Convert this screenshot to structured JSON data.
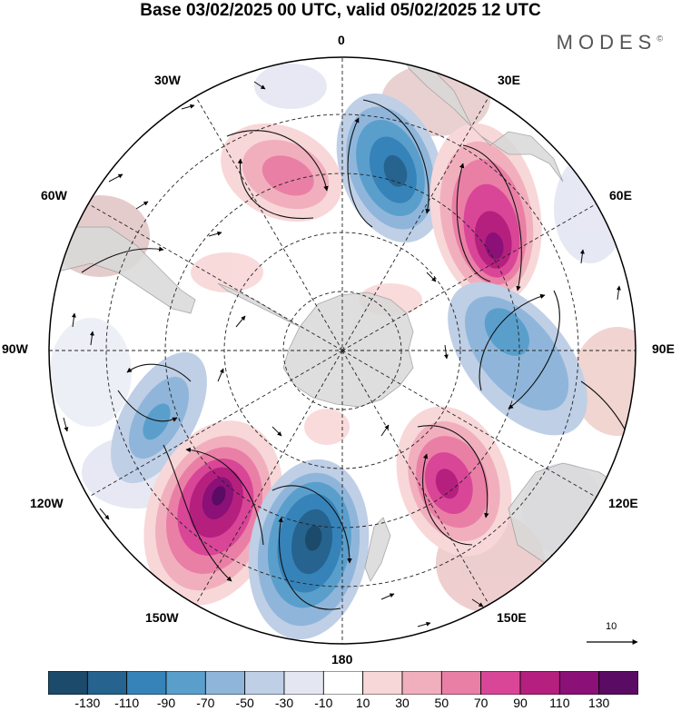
{
  "title": "Base 03/02/2025 00 UTC, valid 05/02/2025 12 UTC",
  "logo": {
    "text": "MODES",
    "mark": "©"
  },
  "map": {
    "projection": "south-polar-stereographic",
    "longitude_labels": [
      {
        "key": "n0",
        "text": "0"
      },
      {
        "key": "e30",
        "text": "30E"
      },
      {
        "key": "e60",
        "text": "60E"
      },
      {
        "key": "e90",
        "text": "90E"
      },
      {
        "key": "e120",
        "text": "120E"
      },
      {
        "key": "e150",
        "text": "150E"
      },
      {
        "key": "s180",
        "text": "180"
      },
      {
        "key": "w150",
        "text": "150W"
      },
      {
        "key": "w120",
        "text": "120W"
      },
      {
        "key": "w90",
        "text": "90W"
      },
      {
        "key": "w60",
        "text": "60W"
      },
      {
        "key": "w30",
        "text": "30W"
      }
    ],
    "vector_scale_label": "10",
    "anomaly_centers": [
      {
        "sign": "negative",
        "lon_label": "15E",
        "value": -110
      },
      {
        "sign": "positive",
        "lon_label": "25W",
        "value": 70
      },
      {
        "sign": "positive",
        "lon_label": "45E",
        "value": 130
      },
      {
        "sign": "negative",
        "lon_label": "80E",
        "value": -70
      },
      {
        "sign": "negative",
        "lon_label": "105W",
        "value": -70
      },
      {
        "sign": "positive",
        "lon_label": "140W",
        "value": 130
      },
      {
        "sign": "negative",
        "lon_label": "170W",
        "value": -130
      },
      {
        "sign": "positive",
        "lon_label": "140E",
        "value": 110
      }
    ]
  },
  "colorbar": {
    "colors": [
      "#1b4a6a",
      "#26638e",
      "#3683b9",
      "#5a9fcc",
      "#8fb6da",
      "#bfcfe6",
      "#e4e6f2",
      "#ffffff",
      "#f8d7d8",
      "#f1afbd",
      "#ea7fa6",
      "#d94697",
      "#b5207f",
      "#8b1077",
      "#5a0b63"
    ],
    "ticks": [
      "-130",
      "-110",
      "-90",
      "-70",
      "-50",
      "-30",
      "-10",
      "10",
      "30",
      "50",
      "70",
      "90",
      "110",
      "130"
    ]
  },
  "palette": {
    "land": "#d9d9d9",
    "coast": "#999999",
    "grid": "#222222",
    "arrow": "#000000"
  }
}
